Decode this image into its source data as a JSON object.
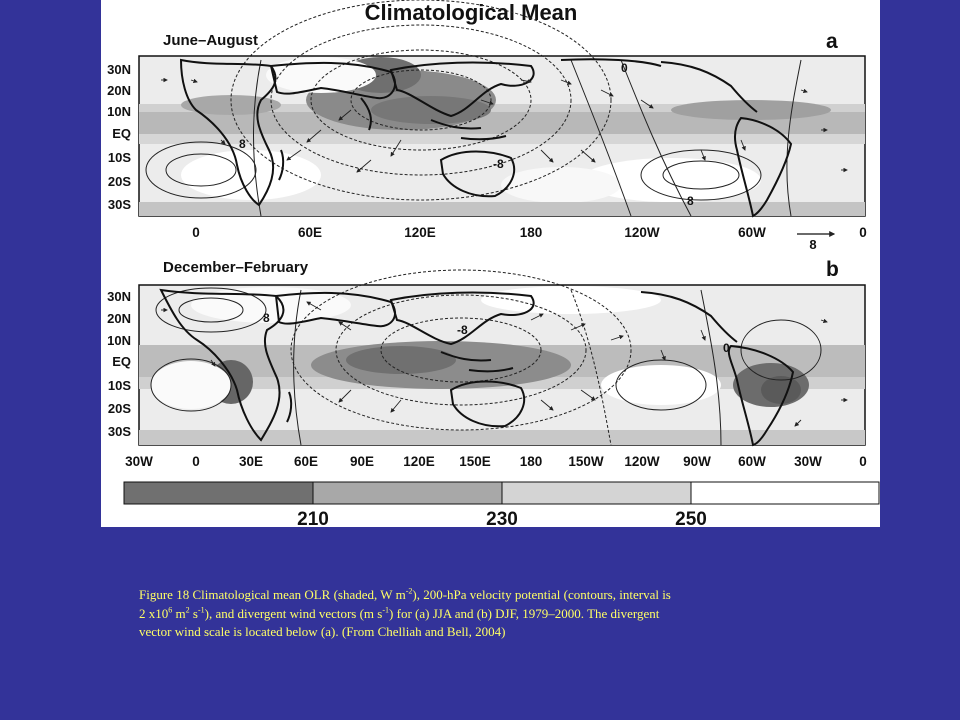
{
  "figure": {
    "title": "Climatological Mean",
    "colors": {
      "band_210": "#707070",
      "band_230": "#a8a8a8",
      "band_250": "#d4d4d4",
      "band_warm": "#ffffff",
      "land": "#111111",
      "contour": "#222222"
    },
    "panel_a": {
      "season": "June–August",
      "letter": "a",
      "lat_labels": [
        "30N",
        "20N",
        "10N",
        "EQ",
        "10S",
        "20S",
        "30S"
      ],
      "lon_labels": [
        "0",
        "60E",
        "120E",
        "180",
        "120W",
        "60W"
      ],
      "contour_labels": [
        "0",
        "8",
        "-8",
        "8"
      ],
      "vector_scale": {
        "label": "8",
        "end_label": "0"
      }
    },
    "panel_b": {
      "season": "December–February",
      "letter": "b",
      "lat_labels": [
        "30N",
        "20N",
        "10N",
        "EQ",
        "10S",
        "20S",
        "30S"
      ],
      "lon_labels": [
        "30W",
        "0",
        "30E",
        "60E",
        "90E",
        "120E",
        "150E",
        "180",
        "150W",
        "120W",
        "90W",
        "60W",
        "30W",
        "0"
      ],
      "contour_labels": [
        "8",
        "-8",
        "0"
      ]
    },
    "colorbar": {
      "labels": [
        "210",
        "230",
        "250"
      ],
      "unit": "W m-2"
    }
  },
  "caption": {
    "line1_a": "Figure 18  Climatological mean OLR (shaded, W m",
    "line1_sup": "-2",
    "line1_b": "), 200-hPa velocity potential (contours, interval is",
    "line2_a": " 2 x10",
    "line2_sup1": "6",
    "line2_b": " m",
    "line2_sup2": "2",
    "line2_c": " s",
    "line2_sup3": "-1",
    "line2_d": "), and divergent wind vectors (m s",
    "line2_sup4": "-1",
    "line2_e": ") for (a) JJA and (b) DJF, 1979–2000. The divergent",
    "line3": "vector wind scale is located below (a). (From Chelliah and Bell, 2004)"
  }
}
